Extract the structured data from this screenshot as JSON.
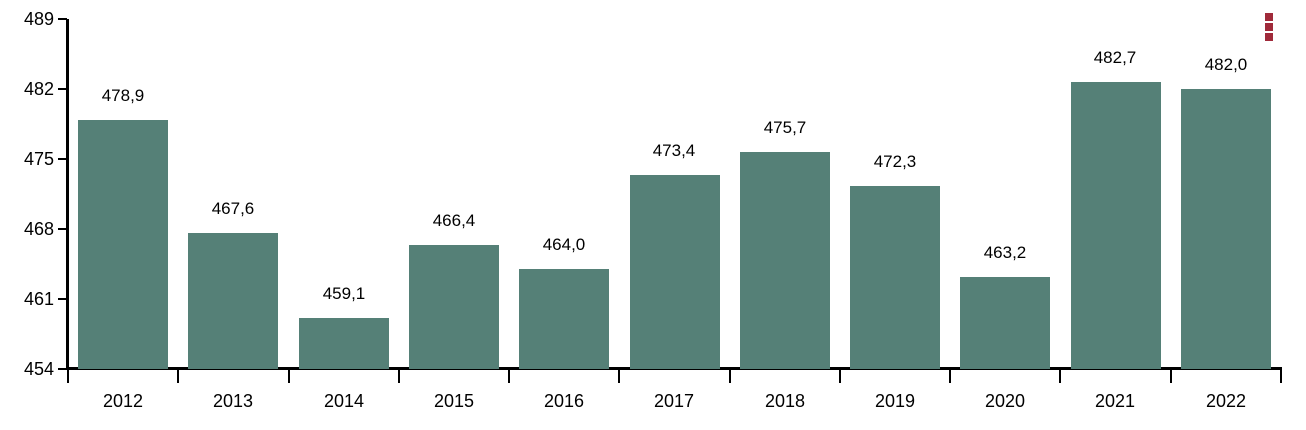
{
  "chart_data": {
    "type": "bar",
    "title": "",
    "categories": [
      "2012",
      "2013",
      "2014",
      "2015",
      "2016",
      "2017",
      "2018",
      "2019",
      "2020",
      "2021",
      "2022"
    ],
    "values": [
      478.9,
      467.6,
      459.1,
      466.4,
      464.0,
      473.4,
      475.7,
      472.3,
      463.2,
      482.7,
      482.0
    ],
    "value_labels": [
      "478,9",
      "467,6",
      "459,1",
      "466,4",
      "464,0",
      "473,4",
      "475,7",
      "472,3",
      "463,2",
      "482,7",
      "482,0"
    ],
    "xlabel": "",
    "ylabel": "",
    "ylim": [
      454,
      489
    ],
    "yticks": [
      489,
      482,
      475,
      468,
      461,
      454
    ],
    "grid": false,
    "legend": "none",
    "decimal_separator": ",",
    "bar_color": "#558077",
    "axis_color": "#000000",
    "text_color": "#000000"
  },
  "toolbar": {
    "menu_icon_name": "kebab-menu",
    "menu_icon_color": "#A02A3A"
  }
}
